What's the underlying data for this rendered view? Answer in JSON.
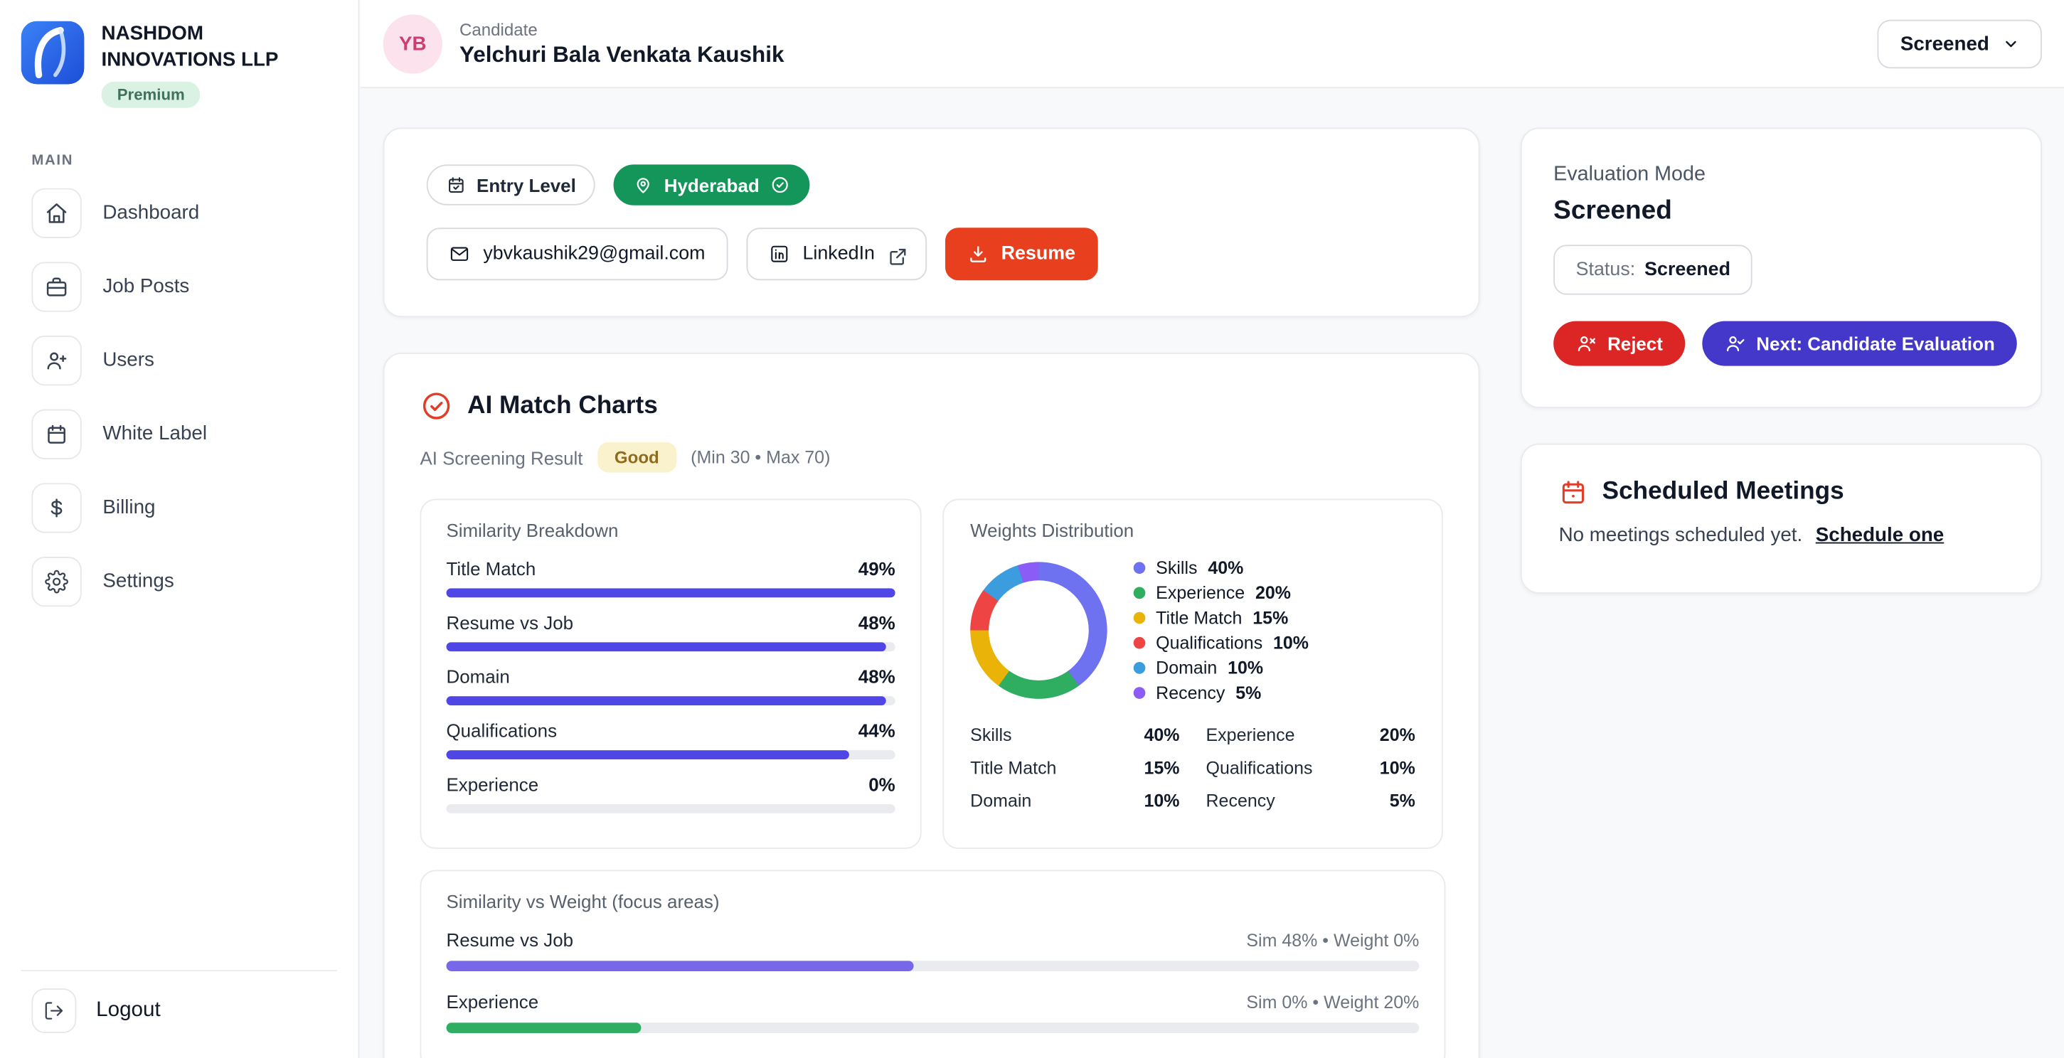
{
  "colors": {
    "accent_indigo": "#4338ca",
    "bar_indigo": "#4f46e5",
    "resume_red": "#e8401f",
    "reject_red": "#dc2626",
    "chip_green": "#14955a",
    "badge_good_bg": "#faf1cd",
    "badge_good_text": "#8f6b1d"
  },
  "sidebar": {
    "company": "NASHDOM INNOVATIONS LLP",
    "badge": "Premium",
    "section": "MAIN",
    "items": [
      {
        "label": "Dashboard",
        "icon": "home-icon"
      },
      {
        "label": "Job Posts",
        "icon": "briefcase-icon"
      },
      {
        "label": "Users",
        "icon": "user-plus-icon"
      },
      {
        "label": "White Label",
        "icon": "calendar-icon"
      },
      {
        "label": "Billing",
        "icon": "dollar-icon"
      },
      {
        "label": "Settings",
        "icon": "gear-icon"
      }
    ],
    "logout": "Logout"
  },
  "header": {
    "avatar": "YB",
    "role": "Candidate",
    "name": "Yelchuri Bala Venkata Kaushik",
    "status_dropdown": "Screened"
  },
  "profile_card": {
    "level_chip": "Entry Level",
    "location_chip": "Hyderabad",
    "email": "ybvkaushik29@gmail.com",
    "linkedin": "LinkedIn",
    "resume": "Resume"
  },
  "ai_match": {
    "title": "AI Match Charts",
    "screening_label": "AI Screening Result",
    "screening_badge": "Good",
    "screening_range": "(Min 30 • Max 70)",
    "similarity": {
      "title": "Similarity Breakdown",
      "rows": [
        {
          "label": "Title Match",
          "pct": "49%",
          "value": 49
        },
        {
          "label": "Resume vs Job",
          "pct": "48%",
          "value": 48
        },
        {
          "label": "Domain",
          "pct": "48%",
          "value": 48
        },
        {
          "label": "Qualifications",
          "pct": "44%",
          "value": 44
        },
        {
          "label": "Experience",
          "pct": "0%",
          "value": 0
        }
      ]
    },
    "weights": {
      "title": "Weights Distribution",
      "items": [
        {
          "label": "Skills",
          "pct": "40%",
          "value": 40,
          "color": "#6e72f0"
        },
        {
          "label": "Experience",
          "pct": "20%",
          "value": 20,
          "color": "#2fae62"
        },
        {
          "label": "Title Match",
          "pct": "15%",
          "value": 15,
          "color": "#eab308"
        },
        {
          "label": "Qualifications",
          "pct": "10%",
          "value": 10,
          "color": "#ef4444"
        },
        {
          "label": "Domain",
          "pct": "10%",
          "value": 10,
          "color": "#3b9ddd"
        },
        {
          "label": "Recency",
          "pct": "5%",
          "value": 5,
          "color": "#8b5cf6"
        }
      ]
    },
    "focus": {
      "title": "Similarity vs Weight (focus areas)",
      "rows": [
        {
          "label": "Resume vs Job",
          "meta": "Sim 48% • Weight 0%",
          "bar": 48,
          "color": "#7668e8"
        },
        {
          "label": "Experience",
          "meta": "Sim 0% • Weight 20%",
          "bar": 20,
          "color": "#2fae62"
        }
      ]
    }
  },
  "evaluation": {
    "title": "Evaluation Mode",
    "mode": "Screened",
    "status_label": "Status:",
    "status_value": "Screened",
    "reject": "Reject",
    "next": "Next: Candidate Evaluation"
  },
  "meetings": {
    "title": "Scheduled Meetings",
    "empty": "No meetings scheduled yet.",
    "link": "Schedule one"
  },
  "chart_data": [
    {
      "type": "bar",
      "title": "Similarity Breakdown",
      "categories": [
        "Title Match",
        "Resume vs Job",
        "Domain",
        "Qualifications",
        "Experience"
      ],
      "values": [
        49,
        48,
        48,
        44,
        0
      ],
      "unit": "%"
    },
    {
      "type": "pie",
      "title": "Weights Distribution",
      "categories": [
        "Skills",
        "Experience",
        "Title Match",
        "Qualifications",
        "Domain",
        "Recency"
      ],
      "values": [
        40,
        20,
        15,
        10,
        10,
        5
      ],
      "unit": "%",
      "legend_position": "right"
    },
    {
      "type": "bar",
      "title": "Similarity vs Weight (focus areas)",
      "categories": [
        "Resume vs Job",
        "Experience"
      ],
      "series": [
        {
          "name": "Sim",
          "values": [
            48,
            0
          ]
        },
        {
          "name": "Weight",
          "values": [
            0,
            20
          ]
        }
      ],
      "unit": "%"
    }
  ]
}
